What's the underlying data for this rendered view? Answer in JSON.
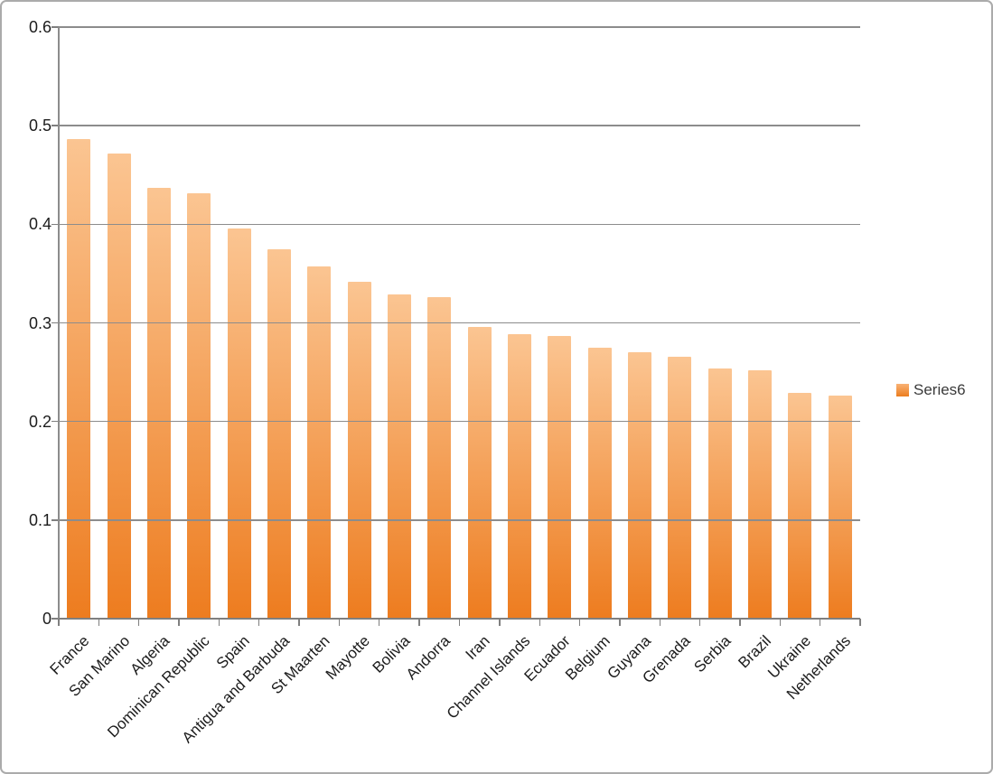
{
  "chart_data": {
    "type": "bar",
    "title": "",
    "xlabel": "",
    "ylabel": "",
    "categories": [
      "France",
      "San Marino",
      "Algeria",
      "Dominican Republic",
      "Spain",
      "Antigua and Barbuda",
      "St Maarten",
      "Mayotte",
      "Bolivia",
      "Andorra",
      "Iran",
      "Channel Islands",
      "Ecuador",
      "Belgium",
      "Guyana",
      "Grenada",
      "Serbia",
      "Brazil",
      "Ukraine",
      "Netherlands"
    ],
    "series": [
      {
        "name": "Series6",
        "values": [
          0.486,
          0.472,
          0.437,
          0.431,
          0.396,
          0.375,
          0.357,
          0.342,
          0.329,
          0.326,
          0.296,
          0.289,
          0.287,
          0.275,
          0.27,
          0.266,
          0.254,
          0.252,
          0.229,
          0.226
        ]
      }
    ],
    "ylim": [
      0,
      0.6
    ],
    "ytick_step": 0.1,
    "ytick_labels": [
      "0",
      "0.1",
      "0.2",
      "0.3",
      "0.4",
      "0.5",
      "0.6"
    ],
    "grid": true,
    "gridlines_over_bars": true,
    "legend_position": "right",
    "xlabel_rotation_deg": -45,
    "colors": {
      "bar_gradient_top": "#fbc592",
      "bar_gradient_bottom": "#ed7c1f",
      "gridline": "#8c8c8c",
      "axis": "#7f7f7f",
      "text": "#1c1c1c",
      "border": "#ababab",
      "background": "#ffffff"
    }
  },
  "legend": {
    "items": [
      {
        "label": "Series6",
        "swatch_top": "#f9b275",
        "swatch_bottom": "#ec7d1e"
      }
    ]
  }
}
